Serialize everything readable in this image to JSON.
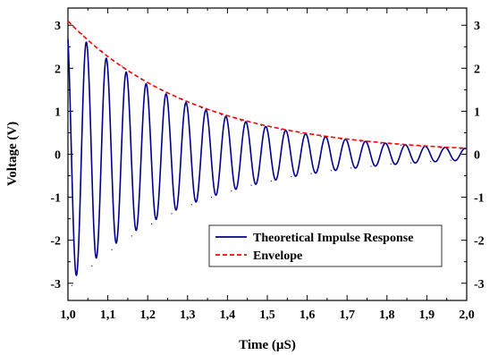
{
  "chart_data": {
    "type": "line",
    "xlabel": "Time (µS)",
    "ylabel": "Voltage (V)",
    "xlim": [
      1.0,
      2.0
    ],
    "ylim": [
      -3.4,
      3.4
    ],
    "x_ticks": [
      "1,0",
      "1,1",
      "1,2",
      "1,3",
      "1,4",
      "1,5",
      "1,6",
      "1,7",
      "1,8",
      "1,9",
      "2,0"
    ],
    "y_ticks": [
      "-3",
      "-2",
      "-1",
      "0",
      "1",
      "2",
      "3"
    ],
    "y_ticks_right": [
      "-3",
      "-2",
      "-1",
      "0",
      "1",
      "2",
      "3"
    ],
    "grid": false,
    "legend_position": "lower-right",
    "series": [
      {
        "name": "Theoretical Impulse Response",
        "style": "solid",
        "color": "#00008b",
        "model": {
          "amplitude": 3.1,
          "decay_rate": 3.1,
          "frequency": 20.0,
          "start": 1.0
        },
        "peaks": [
          {
            "x": 1.035,
            "y": 2.8
          },
          {
            "x": 1.085,
            "y": 2.4
          },
          {
            "x": 1.135,
            "y": 2.05
          },
          {
            "x": 1.185,
            "y": 1.75
          },
          {
            "x": 1.235,
            "y": 1.5
          },
          {
            "x": 1.285,
            "y": 1.28
          },
          {
            "x": 1.335,
            "y": 1.08
          },
          {
            "x": 1.385,
            "y": 0.92
          },
          {
            "x": 1.435,
            "y": 0.78
          },
          {
            "x": 1.485,
            "y": 0.67
          },
          {
            "x": 1.535,
            "y": 0.57
          },
          {
            "x": 1.585,
            "y": 0.48
          },
          {
            "x": 1.635,
            "y": 0.41
          },
          {
            "x": 1.685,
            "y": 0.35
          },
          {
            "x": 1.735,
            "y": 0.3
          },
          {
            "x": 1.785,
            "y": 0.25
          },
          {
            "x": 1.835,
            "y": 0.21
          },
          {
            "x": 1.885,
            "y": 0.18
          },
          {
            "x": 1.935,
            "y": 0.15
          },
          {
            "x": 1.985,
            "y": 0.13
          }
        ],
        "troughs": [
          {
            "x": 1.01,
            "y": -3.05
          },
          {
            "x": 1.06,
            "y": -2.6
          },
          {
            "x": 1.11,
            "y": -2.22
          },
          {
            "x": 1.16,
            "y": -1.9
          },
          {
            "x": 1.21,
            "y": -1.62
          },
          {
            "x": 1.26,
            "y": -1.38
          },
          {
            "x": 1.31,
            "y": -1.17
          },
          {
            "x": 1.36,
            "y": -1.0
          },
          {
            "x": 1.41,
            "y": -0.85
          },
          {
            "x": 1.46,
            "y": -0.72
          },
          {
            "x": 1.51,
            "y": -0.62
          },
          {
            "x": 1.56,
            "y": -0.52
          },
          {
            "x": 1.61,
            "y": -0.45
          },
          {
            "x": 1.66,
            "y": -0.38
          },
          {
            "x": 1.71,
            "y": -0.32
          },
          {
            "x": 1.76,
            "y": -0.28
          },
          {
            "x": 1.81,
            "y": -0.23
          },
          {
            "x": 1.86,
            "y": -0.2
          },
          {
            "x": 1.91,
            "y": -0.17
          },
          {
            "x": 1.96,
            "y": -0.14
          }
        ]
      },
      {
        "name": "Envelope",
        "style": "dashed",
        "color": "#ff0000",
        "x": [
          1.0,
          1.1,
          1.2,
          1.3,
          1.4,
          1.5,
          1.6,
          1.7,
          1.8,
          1.9,
          2.0
        ],
        "y": [
          3.1,
          2.27,
          1.67,
          1.22,
          0.9,
          0.66,
          0.48,
          0.35,
          0.26,
          0.19,
          0.14
        ]
      }
    ]
  }
}
